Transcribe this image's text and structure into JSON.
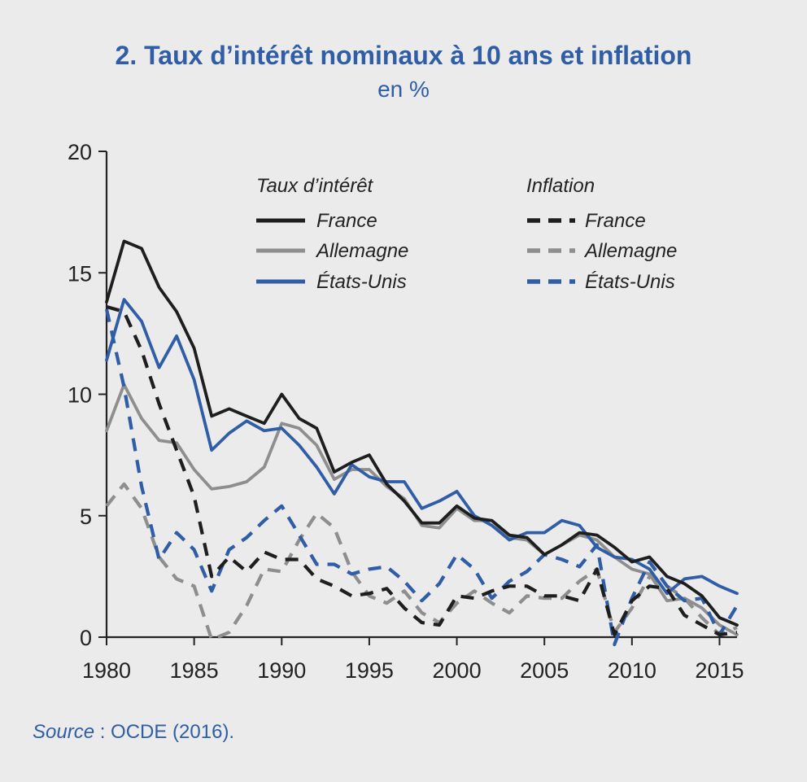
{
  "title": "2. Taux d’intérêt nominaux à 10 ans et inflation",
  "subtitle": "en %",
  "source_label": "Source",
  "source_text": " : OCDE (2016).",
  "colors": {
    "france": "#1e1e1e",
    "allemagne": "#8e8e8e",
    "etats_unis": "#2f5da6",
    "text_blue": "#2f5da6"
  },
  "chart_data": {
    "type": "line",
    "title": "2. Taux d’intérêt nominaux à 10 ans et inflation",
    "ylabel": "en %",
    "xlabel": "",
    "xlim": [
      1980,
      2016
    ],
    "ylim": [
      0,
      20
    ],
    "x_ticks": [
      1980,
      1985,
      1990,
      1995,
      2000,
      2005,
      2010,
      2015
    ],
    "y_ticks": [
      0,
      5,
      10,
      15,
      20
    ],
    "x": [
      1980,
      1981,
      1982,
      1983,
      1984,
      1985,
      1986,
      1987,
      1988,
      1989,
      1990,
      1991,
      1992,
      1993,
      1994,
      1995,
      1996,
      1997,
      1998,
      1999,
      2000,
      2001,
      2002,
      2003,
      2004,
      2005,
      2006,
      2007,
      2008,
      2009,
      2010,
      2011,
      2012,
      2013,
      2014,
      2015,
      2016
    ],
    "legend": {
      "group_interest": "Taux d’intérêt",
      "group_inflation": "Inflation"
    },
    "series": [
      {
        "name": "France",
        "group": "Taux d’intérêt",
        "style": "solid",
        "color": "#1e1e1e",
        "values": [
          13.8,
          16.3,
          16.0,
          14.4,
          13.4,
          11.9,
          9.1,
          9.4,
          9.1,
          8.8,
          10.0,
          9.0,
          8.6,
          6.8,
          7.2,
          7.5,
          6.3,
          5.6,
          4.7,
          4.7,
          5.4,
          4.9,
          4.8,
          4.2,
          4.1,
          3.4,
          3.8,
          4.3,
          4.2,
          3.7,
          3.1,
          3.3,
          2.5,
          2.2,
          1.7,
          0.8,
          0.5
        ]
      },
      {
        "name": "Allemagne",
        "group": "Taux d’intérêt",
        "style": "solid",
        "color": "#8e8e8e",
        "values": [
          8.5,
          10.4,
          9.0,
          8.1,
          8.0,
          6.9,
          6.1,
          6.2,
          6.4,
          7.0,
          8.8,
          8.6,
          7.9,
          6.5,
          6.9,
          6.9,
          6.2,
          5.7,
          4.6,
          4.5,
          5.3,
          4.8,
          4.8,
          4.1,
          4.0,
          3.4,
          3.8,
          4.2,
          4.0,
          3.3,
          2.8,
          2.6,
          1.5,
          1.6,
          1.2,
          0.5,
          0.1
        ]
      },
      {
        "name": "États-Unis",
        "group": "Taux d’intérêt",
        "style": "solid",
        "color": "#2f5da6",
        "values": [
          11.4,
          13.9,
          13.0,
          11.1,
          12.4,
          10.6,
          7.7,
          8.4,
          8.9,
          8.5,
          8.6,
          7.9,
          7.0,
          5.9,
          7.1,
          6.6,
          6.4,
          6.4,
          5.3,
          5.6,
          6.0,
          5.0,
          4.6,
          4.0,
          4.3,
          4.3,
          4.8,
          4.6,
          3.7,
          3.3,
          3.2,
          2.8,
          1.8,
          2.4,
          2.5,
          2.1,
          1.8
        ]
      },
      {
        "name": "France",
        "group": "Inflation",
        "style": "dashed",
        "color": "#1e1e1e",
        "values": [
          13.6,
          13.4,
          11.8,
          9.6,
          7.7,
          5.8,
          2.5,
          3.3,
          2.7,
          3.5,
          3.2,
          3.2,
          2.4,
          2.1,
          1.7,
          1.8,
          2.0,
          1.2,
          0.6,
          0.5,
          1.7,
          1.6,
          1.9,
          2.1,
          2.1,
          1.7,
          1.7,
          1.5,
          2.8,
          0.1,
          1.5,
          2.1,
          2.0,
          0.9,
          0.5,
          0.1,
          0.2
        ]
      },
      {
        "name": "Allemagne",
        "group": "Inflation",
        "style": "dashed",
        "color": "#8e8e8e",
        "values": [
          5.4,
          6.3,
          5.3,
          3.3,
          2.4,
          2.1,
          -0.1,
          0.2,
          1.3,
          2.8,
          2.7,
          4.0,
          5.1,
          4.5,
          2.7,
          1.7,
          1.4,
          1.9,
          1.0,
          0.6,
          1.4,
          1.9,
          1.4,
          1.0,
          1.7,
          1.6,
          1.6,
          2.3,
          2.8,
          0.2,
          1.2,
          2.5,
          2.1,
          1.6,
          0.8,
          0.1,
          0.4
        ]
      },
      {
        "name": "États-Unis",
        "group": "Inflation",
        "style": "dashed",
        "color": "#2f5da6",
        "values": [
          13.5,
          10.3,
          6.2,
          3.2,
          4.3,
          3.6,
          1.9,
          3.6,
          4.1,
          4.8,
          5.4,
          4.2,
          3.0,
          3.0,
          2.6,
          2.8,
          2.9,
          2.3,
          1.5,
          2.2,
          3.4,
          2.8,
          1.6,
          2.3,
          2.7,
          3.4,
          3.2,
          2.9,
          3.8,
          -0.3,
          1.6,
          3.1,
          2.1,
          1.5,
          1.6,
          0.1,
          1.3
        ]
      }
    ]
  }
}
